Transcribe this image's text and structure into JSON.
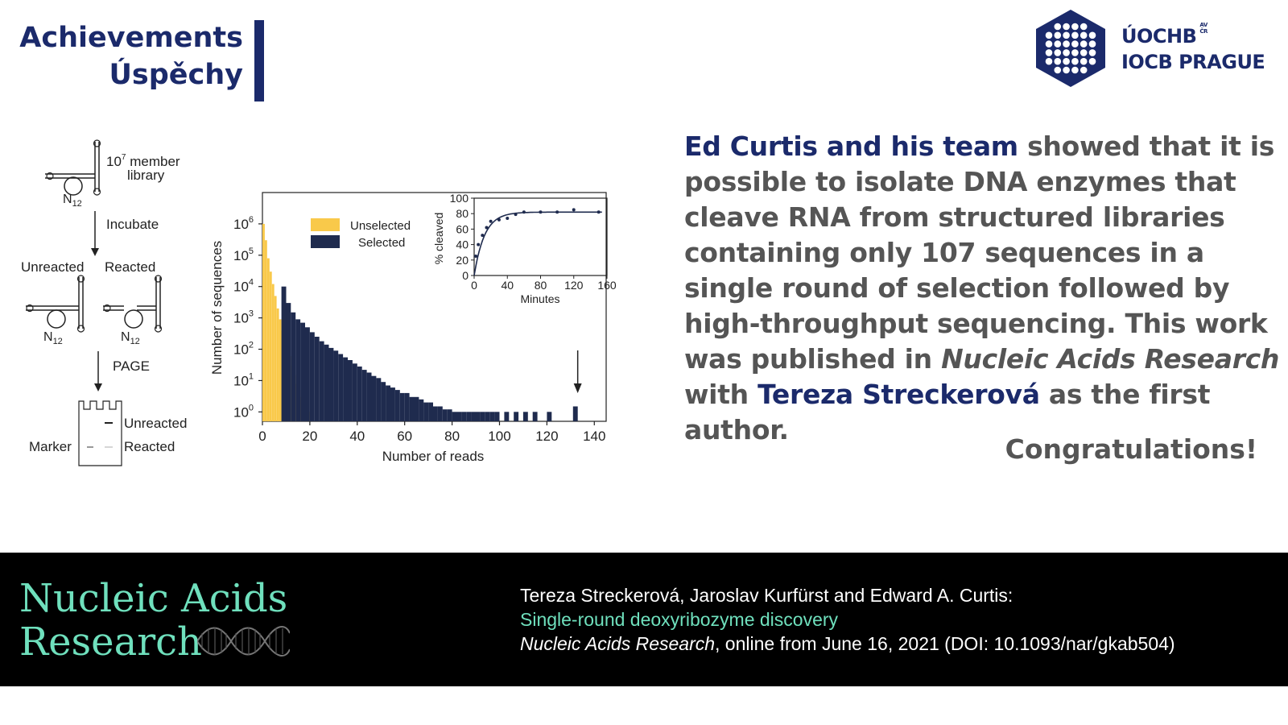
{
  "header": {
    "title_line1": "Achievements",
    "title_line2": "Úspěchy"
  },
  "logo": {
    "name_line1": "ÚOCHB",
    "name_line2": "IOCB PRAGUE",
    "academy_line1": "AV",
    "academy_line2": "ČR",
    "colors": {
      "navy": "#1b2a6b"
    }
  },
  "schematic": {
    "library_label_base": "10",
    "library_label_exp": "7",
    "library_label_rest": " member",
    "library_label_line2": "library",
    "n12_base": "N",
    "n12_sub": "12",
    "step1": "Incubate",
    "unreacted": "Unreacted",
    "reacted": "Reacted",
    "step2": "PAGE",
    "gel_unreacted": "Unreacted",
    "gel_reacted": "Reacted",
    "marker": "Marker"
  },
  "chart_data": {
    "type": "bar",
    "xlabel": "Number of reads",
    "ylabel": "Number of sequences",
    "xlim": [
      0,
      145
    ],
    "ylim_log10": [
      -0.3,
      7
    ],
    "y_scale": "log",
    "xticks": [
      "0",
      "20",
      "40",
      "60",
      "80",
      "100",
      "120",
      "140"
    ],
    "ytick_base": "10",
    "ytick_exponents": [
      "0",
      "1",
      "2",
      "3",
      "4",
      "5",
      "6"
    ],
    "legend_position": "top-left",
    "series": [
      {
        "name": "Unselected",
        "color": "#f9c94a",
        "x": [
          1,
          2,
          3,
          4,
          5,
          6,
          7,
          8,
          9,
          10,
          11,
          12,
          13,
          14,
          15,
          16,
          17,
          18,
          19,
          20
        ],
        "values": [
          1000000,
          300000,
          80000,
          30000,
          12000,
          5000,
          2000,
          900,
          400,
          200,
          100,
          60,
          30,
          15,
          8,
          5,
          3,
          2,
          1.5,
          1
        ]
      },
      {
        "name": "Selected",
        "color": "#1f2b4e",
        "x": [
          10,
          12,
          14,
          16,
          18,
          20,
          22,
          24,
          26,
          28,
          30,
          32,
          34,
          36,
          38,
          40,
          42,
          44,
          46,
          48,
          50,
          52,
          54,
          56,
          58,
          60,
          62,
          64,
          66,
          68,
          70,
          72,
          74,
          76,
          78,
          80,
          82,
          84,
          86,
          88,
          90,
          92,
          94,
          96,
          98,
          100,
          104,
          108,
          112,
          116,
          122,
          133
        ],
        "values": [
          10000,
          3000,
          1500,
          900,
          700,
          500,
          350,
          250,
          180,
          140,
          110,
          90,
          70,
          55,
          45,
          35,
          28,
          22,
          18,
          14,
          12,
          9,
          7,
          6,
          5,
          4,
          4,
          3,
          3,
          2.5,
          2,
          2,
          1.5,
          1.5,
          1.2,
          1.2,
          1,
          1,
          1,
          1,
          1,
          1,
          1,
          1,
          1,
          1,
          1,
          1,
          1,
          1,
          1,
          1.5
        ]
      }
    ],
    "annotation": "arrow at x=133",
    "inset": {
      "type": "scatter",
      "xlabel": "Minutes",
      "ylabel": "% cleaved",
      "xlim": [
        0,
        160
      ],
      "ylim": [
        0,
        100
      ],
      "xticks": [
        "0",
        "40",
        "80",
        "120",
        "160"
      ],
      "yticks": [
        "0",
        "20",
        "40",
        "60",
        "80",
        "100"
      ],
      "points": {
        "x": [
          2,
          5,
          10,
          15,
          20,
          30,
          40,
          50,
          60,
          80,
          100,
          120,
          150
        ],
        "y": [
          25,
          40,
          52,
          62,
          70,
          72,
          74,
          79,
          82,
          82,
          82,
          85,
          82
        ]
      },
      "fit": {
        "plateau": 82,
        "rate": 0.08
      }
    }
  },
  "summary": {
    "author_team": "Ed Curtis and his team",
    "text1": " showed that it is possible to isolate DNA enzymes that cleave RNA from structured libraries containing only 107 sequences in a single round of selection followed by high-throughput sequencing. This work was published in ",
    "journal": "Nucleic Acids Research",
    "text2": " with ",
    "first_author": "Tereza Streckerová",
    "text3": " as the first author."
  },
  "congrats": "Congratulations!",
  "footer": {
    "journal_line1": "Nucleic Acids",
    "journal_line2": "Research",
    "authors": "Tereza Streckerová, Jaroslav Kurfürst and Edward A. Curtis:",
    "article_title": "Single-round deoxyribozyme discovery",
    "journal_italic": "Nucleic Acids Research",
    "publication": ", online from June 16, 2021 (DOI: 10.1093/nar/gkab504)",
    "colors": {
      "accent": "#6fe0bd",
      "background": "#000000"
    }
  }
}
